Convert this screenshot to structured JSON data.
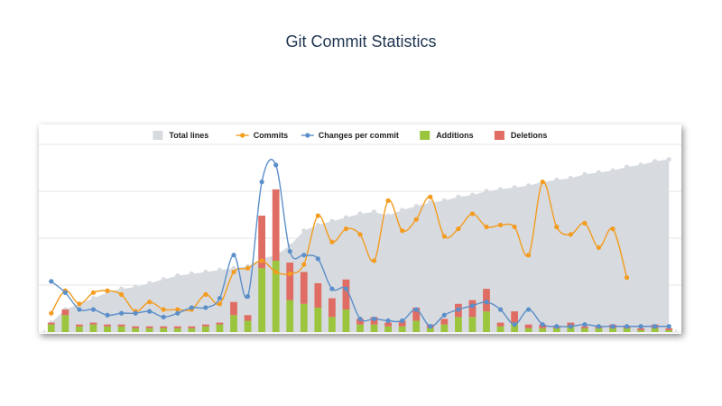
{
  "page": {
    "title": "Git Commit Statistics"
  },
  "chart_data": {
    "type": "line",
    "title": "Git Commit Statistics",
    "xlabel": "",
    "ylabel": "",
    "x": [
      1,
      2,
      3,
      4,
      5,
      6,
      7,
      8,
      9,
      10,
      11,
      12,
      13,
      14,
      15,
      16,
      17,
      18,
      19,
      20,
      21,
      22,
      23,
      24,
      25,
      26,
      27,
      28,
      29,
      30,
      31,
      32,
      33,
      34,
      35,
      36,
      37,
      38,
      39,
      40,
      41,
      42,
      43,
      44,
      45
    ],
    "ylim": [
      0,
      100
    ],
    "grid": true,
    "legend_position": "top",
    "series": [
      {
        "name": "Total lines",
        "kind": "area",
        "color": "#d7dadf",
        "values": [
          5,
          12,
          15,
          18,
          21,
          23,
          24,
          26,
          28,
          30,
          31,
          32,
          33,
          34,
          35,
          39,
          41,
          46,
          54,
          57,
          59,
          61,
          63,
          64,
          62,
          65,
          67,
          69,
          70,
          72,
          73,
          75,
          76,
          77,
          78,
          80,
          81,
          82,
          84,
          85,
          86,
          88,
          89,
          91,
          92
        ]
      },
      {
        "name": "Commits",
        "kind": "line",
        "color": "#f39c1f",
        "values": [
          10,
          22,
          15,
          21,
          22,
          20,
          11,
          16,
          12,
          12,
          12,
          20,
          15,
          32,
          34,
          38,
          32,
          31,
          36,
          62,
          48,
          55,
          52,
          38,
          70,
          54,
          60,
          72,
          51,
          55,
          63,
          56,
          57,
          56,
          41,
          80,
          56,
          52,
          58,
          45,
          55,
          29,
          null,
          null,
          null
        ]
      },
      {
        "name": "Changes per commit",
        "kind": "line",
        "color": "#5b8fc9",
        "values": [
          27,
          21,
          12,
          12,
          9,
          10,
          10,
          11,
          8,
          10,
          13,
          13,
          18,
          41,
          19,
          80,
          89,
          43,
          41,
          39,
          23,
          23,
          7,
          7,
          6,
          6,
          12,
          3,
          9,
          12,
          14,
          16,
          12,
          4,
          12,
          4,
          3,
          3,
          4,
          3,
          3,
          3,
          3,
          3,
          3
        ]
      },
      {
        "name": "Additions",
        "kind": "bar",
        "color": "#9bc53d",
        "values": [
          4,
          9,
          3,
          4,
          3,
          3,
          2,
          2,
          2,
          2,
          2,
          3,
          4,
          9,
          6,
          34,
          38,
          17,
          15,
          13,
          8,
          12,
          4,
          4,
          3,
          3,
          6,
          2,
          4,
          8,
          8,
          11,
          3,
          5,
          2,
          2,
          2,
          3,
          2,
          2,
          2,
          2,
          1,
          2,
          1
        ]
      },
      {
        "name": "Deletions",
        "kind": "bar",
        "color": "#e06d63",
        "values": [
          1,
          3,
          1,
          1,
          1,
          1,
          1,
          1,
          1,
          1,
          1,
          1,
          1,
          7,
          3,
          28,
          38,
          20,
          17,
          13,
          10,
          16,
          3,
          4,
          2,
          3,
          7,
          2,
          3,
          7,
          9,
          12,
          2,
          6,
          2,
          2,
          1,
          2,
          1,
          1,
          2,
          1,
          1,
          2,
          1
        ]
      }
    ]
  }
}
